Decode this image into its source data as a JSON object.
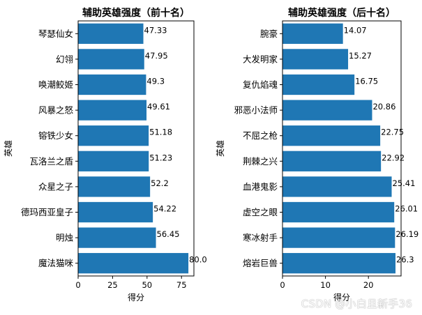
{
  "chart_data": [
    {
      "type": "bar",
      "orientation": "horizontal",
      "title": "辅助英雄强度（前十名）",
      "xlabel": "得分",
      "ylabel": "英雄",
      "categories": [
        "琴瑟仙女",
        "幻翎",
        "唤潮鲛姬",
        "风暴之怒",
        "镕铁少女",
        "瓦洛兰之盾",
        "众星之子",
        "德玛西亚皇子",
        "明烛",
        "魔法猫咪"
      ],
      "values": [
        47.33,
        47.95,
        49.3,
        49.61,
        51.18,
        51.23,
        52.2,
        54.22,
        56.45,
        80.0
      ],
      "value_labels": [
        "47.33",
        "47.95",
        "49.3",
        "49.61",
        "51.18",
        "51.23",
        "52.2",
        "54.22",
        "56.45",
        "80.0"
      ],
      "xlim": [
        0,
        84
      ],
      "xticks": [
        0,
        25,
        50,
        75
      ],
      "grid": false,
      "color": "#1f77b4"
    },
    {
      "type": "bar",
      "orientation": "horizontal",
      "title": "辅助英雄强度（后十名）",
      "xlabel": "得分",
      "ylabel": "英雄",
      "categories": [
        "腕豪",
        "大发明家",
        "复仇焰魂",
        "邪恶小法师",
        "不屈之枪",
        "荆棘之兴",
        "血港鬼影",
        "虚空之眼",
        "寒冰射手",
        "熔岩巨兽"
      ],
      "values": [
        14.07,
        15.27,
        16.75,
        20.86,
        22.75,
        22.92,
        25.41,
        26.01,
        26.19,
        26.3
      ],
      "value_labels": [
        "14.07",
        "15.27",
        "16.75",
        "20.86",
        "22.75",
        "22.92",
        "25.41",
        "26.01",
        "26.19",
        "26.3"
      ],
      "xlim": [
        0,
        27.6
      ],
      "xticks": [
        0,
        10,
        20
      ],
      "grid": false,
      "color": "#1f77b4"
    }
  ],
  "watermark": "CSDN @小白且新手36"
}
